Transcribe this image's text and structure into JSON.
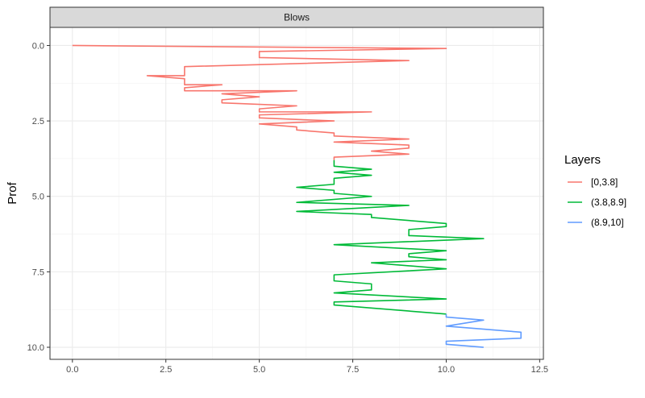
{
  "chart_data": {
    "type": "line",
    "facet_label": "Blows",
    "xlabel": "",
    "ylabel": "Prof",
    "xlim": [
      -0.6,
      12.6
    ],
    "ylim": [
      -0.6,
      10.4
    ],
    "y_reversed": true,
    "x_ticks": [
      0.0,
      2.5,
      5.0,
      7.5,
      10.0,
      12.5
    ],
    "x_tick_labels": [
      "0.0",
      "2.5",
      "5.0",
      "7.5",
      "10.0",
      "12.5"
    ],
    "y_ticks": [
      0.0,
      2.5,
      5.0,
      7.5,
      10.0
    ],
    "y_tick_labels": [
      "0.0",
      "2.5",
      "5.0",
      "7.5",
      "10.0"
    ],
    "grid": true,
    "legend": {
      "title": "Layers",
      "position": "right",
      "entries": [
        "[0,3.8]",
        "(3.8,8.9]",
        "(8.9,10]"
      ]
    },
    "series": [
      {
        "name": "[0,3.8]",
        "color": "#F8766D",
        "points": [
          [
            0,
            0.0
          ],
          [
            10,
            0.1
          ],
          [
            5,
            0.2
          ],
          [
            5,
            0.4
          ],
          [
            9,
            0.5
          ],
          [
            3,
            0.7
          ],
          [
            3,
            1.0
          ],
          [
            2,
            1.0
          ],
          [
            3,
            1.1
          ],
          [
            3,
            1.3
          ],
          [
            4,
            1.3
          ],
          [
            3,
            1.4
          ],
          [
            3,
            1.5
          ],
          [
            6,
            1.5
          ],
          [
            4,
            1.6
          ],
          [
            5,
            1.7
          ],
          [
            4,
            1.8
          ],
          [
            4,
            1.9
          ],
          [
            6,
            2.0
          ],
          [
            5,
            2.1
          ],
          [
            5,
            2.2
          ],
          [
            8,
            2.2
          ],
          [
            5,
            2.3
          ],
          [
            5,
            2.4
          ],
          [
            7,
            2.5
          ],
          [
            5,
            2.6
          ],
          [
            6,
            2.7
          ],
          [
            6,
            2.8
          ],
          [
            7,
            2.9
          ],
          [
            7,
            3.0
          ],
          [
            9,
            3.1
          ],
          [
            7,
            3.2
          ],
          [
            9,
            3.3
          ],
          [
            9,
            3.4
          ],
          [
            8,
            3.5
          ],
          [
            9,
            3.6
          ],
          [
            7,
            3.7
          ],
          [
            7,
            3.8
          ]
        ]
      },
      {
        "name": "(3.8,8.9]",
        "color": "#00BA38",
        "points": [
          [
            7,
            3.8
          ],
          [
            7,
            4.0
          ],
          [
            8,
            4.1
          ],
          [
            7,
            4.2
          ],
          [
            8,
            4.3
          ],
          [
            7,
            4.4
          ],
          [
            7,
            4.6
          ],
          [
            6,
            4.7
          ],
          [
            7,
            4.8
          ],
          [
            7,
            4.9
          ],
          [
            8,
            5.0
          ],
          [
            6,
            5.2
          ],
          [
            9,
            5.3
          ],
          [
            6,
            5.5
          ],
          [
            8,
            5.6
          ],
          [
            8,
            5.7
          ],
          [
            10,
            5.9
          ],
          [
            10,
            6.0
          ],
          [
            9,
            6.1
          ],
          [
            9,
            6.3
          ],
          [
            11,
            6.4
          ],
          [
            7,
            6.6
          ],
          [
            10,
            6.8
          ],
          [
            9,
            6.9
          ],
          [
            9,
            7.0
          ],
          [
            10,
            7.1
          ],
          [
            8,
            7.2
          ],
          [
            10,
            7.4
          ],
          [
            7,
            7.6
          ],
          [
            7,
            7.8
          ],
          [
            8,
            7.9
          ],
          [
            8,
            8.1
          ],
          [
            7,
            8.2
          ],
          [
            10,
            8.4
          ],
          [
            7,
            8.5
          ],
          [
            7,
            8.6
          ],
          [
            10,
            8.9
          ]
        ]
      },
      {
        "name": "(8.9,10]",
        "color": "#619CFF",
        "points": [
          [
            10,
            8.9
          ],
          [
            10,
            9.0
          ],
          [
            11,
            9.1
          ],
          [
            10,
            9.3
          ],
          [
            12,
            9.5
          ],
          [
            12,
            9.7
          ],
          [
            10,
            9.8
          ],
          [
            10,
            9.9
          ],
          [
            11,
            10.0
          ]
        ]
      }
    ]
  }
}
